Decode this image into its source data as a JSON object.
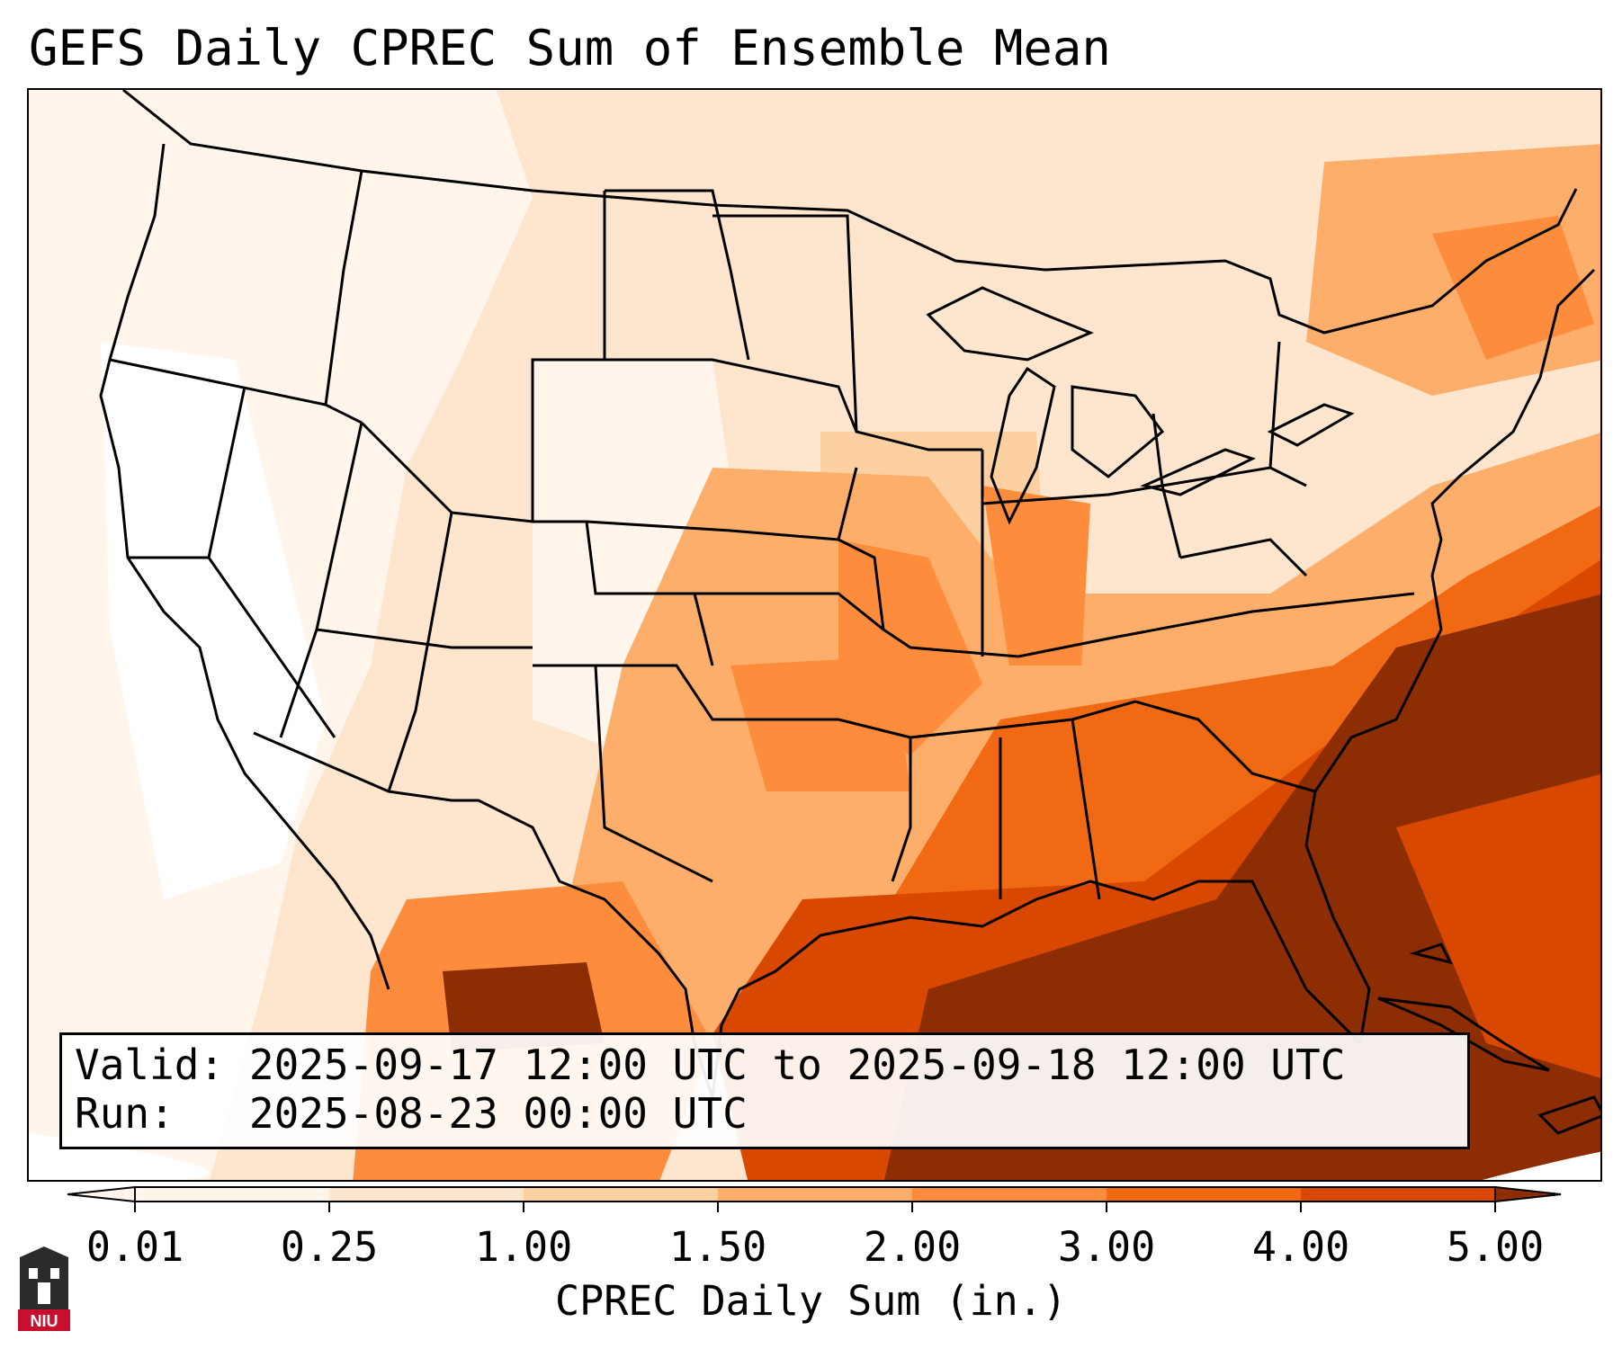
{
  "title": "GEFS Daily CPREC Sum of Ensemble Mean",
  "info": {
    "valid_label": "Valid:",
    "valid_value": "2025-09-17 12:00 UTC to 2025-09-18 12:00 UTC",
    "run_label": "Run:  ",
    "run_value": "2025-08-23 00:00 UTC"
  },
  "colorbar": {
    "title": "CPREC Daily Sum (in.)",
    "ticks": [
      "0.01",
      "0.25",
      "1.00",
      "1.50",
      "2.00",
      "3.00",
      "4.00",
      "5.00"
    ],
    "colors": [
      "#fff5eb",
      "#fee6ce",
      "#fdd0a2",
      "#fdae6b",
      "#fd8d3c",
      "#f16913",
      "#d94801",
      "#8c2d04"
    ]
  },
  "logo": {
    "text": "NIU",
    "color": "#c8102e"
  },
  "map": {
    "projection": "Lambert conformal",
    "region": "Contiguous United States",
    "legend": "none"
  }
}
